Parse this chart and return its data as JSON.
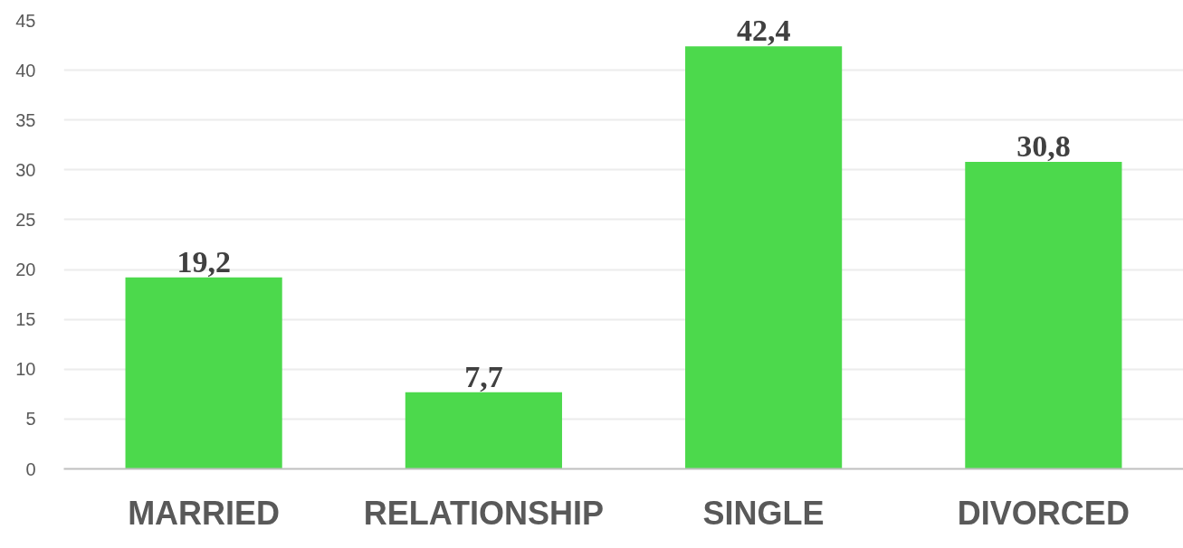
{
  "chart_data": {
    "type": "bar",
    "categories": [
      "MARRIED",
      "RELATIONSHIP",
      "SINGLE",
      "DIVORCED"
    ],
    "values": [
      19.2,
      7.7,
      42.4,
      30.8
    ],
    "value_labels": [
      "19,2",
      "7,7",
      "42,4",
      "30,8"
    ],
    "color": "#4cd94c",
    "ylim": [
      0,
      45
    ],
    "yticks": [
      0,
      5,
      10,
      15,
      20,
      25,
      30,
      35,
      40,
      45
    ],
    "grid": "y"
  }
}
